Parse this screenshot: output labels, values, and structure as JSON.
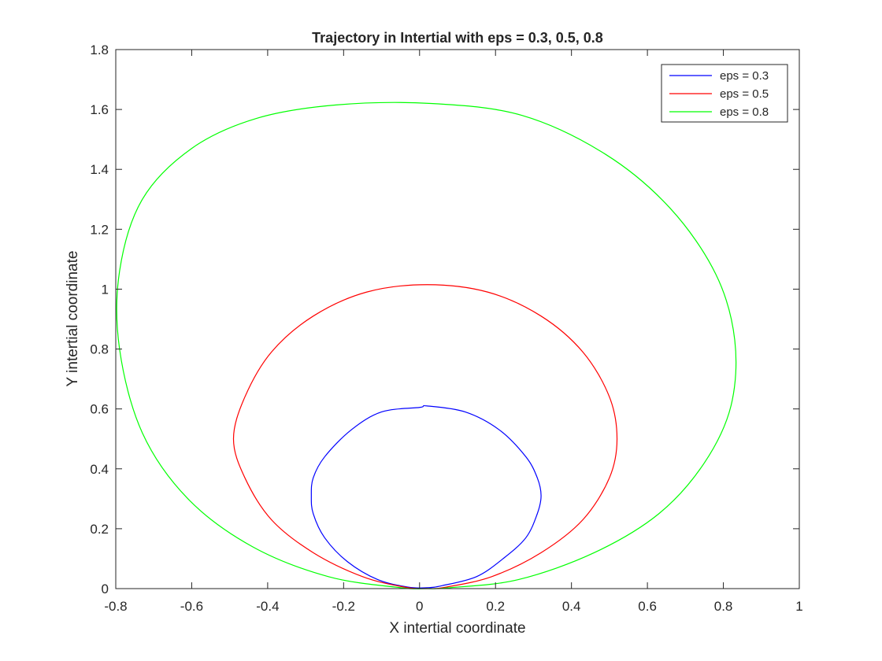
{
  "chart_data": {
    "type": "line",
    "title": "Trajectory in Intertial with eps = 0.3, 0.5, 0.8",
    "xlabel": "X intertial coordinate",
    "ylabel": "Y intertial coordinate",
    "xlim": [
      -0.8,
      1
    ],
    "ylim": [
      0,
      1.8
    ],
    "xticks": [
      -0.8,
      -0.6,
      -0.4,
      -0.2,
      0,
      0.2,
      0.4,
      0.6,
      0.8,
      1
    ],
    "yticks": [
      0,
      0.2,
      0.4,
      0.6,
      0.8,
      1,
      1.2,
      1.4,
      1.6,
      1.8
    ],
    "xtick_labels": [
      "-0.8",
      "-0.6",
      "-0.4",
      "-0.2",
      "0",
      "0.2",
      "0.4",
      "0.6",
      "0.8",
      "1"
    ],
    "ytick_labels": [
      "0",
      "0.2",
      "0.4",
      "0.6",
      "0.8",
      "1",
      "1.2",
      "1.4",
      "1.6",
      "1.8"
    ],
    "grid": false,
    "legend_position": "top-right",
    "series": [
      {
        "name": "eps = 0.3",
        "color": "#0000ff",
        "x": [
          0.02,
          0.12,
          0.21,
          0.28,
          0.31,
          0.32,
          0.31,
          0.28,
          0.22,
          0.15,
          0.06,
          0.02,
          -0.03,
          -0.11,
          -0.19,
          -0.25,
          -0.28,
          -0.285,
          -0.28,
          -0.25,
          -0.18,
          -0.1,
          0.0,
          0.02
        ],
        "y": [
          0.61,
          0.59,
          0.53,
          0.44,
          0.37,
          0.31,
          0.25,
          0.17,
          0.1,
          0.04,
          0.01,
          0.003,
          0.005,
          0.03,
          0.09,
          0.17,
          0.25,
          0.31,
          0.37,
          0.44,
          0.53,
          0.59,
          0.605,
          0.61
        ]
      },
      {
        "name": "eps = 0.5",
        "color": "#ff0000",
        "x": [
          0.02,
          0.18,
          0.32,
          0.43,
          0.5,
          0.52,
          0.5,
          0.43,
          0.32,
          0.19,
          0.07,
          0.02,
          -0.04,
          -0.15,
          -0.28,
          -0.39,
          -0.46,
          -0.49,
          -0.46,
          -0.39,
          -0.28,
          -0.14,
          0.02
        ],
        "y": [
          1.015,
          0.99,
          0.91,
          0.79,
          0.64,
          0.5,
          0.37,
          0.23,
          0.12,
          0.04,
          0.005,
          0.0,
          0.005,
          0.04,
          0.12,
          0.23,
          0.37,
          0.5,
          0.64,
          0.79,
          0.91,
          0.99,
          1.015
        ]
      },
      {
        "name": "eps = 0.8",
        "color": "#00ff00",
        "x": [
          0.03,
          0.27,
          0.49,
          0.66,
          0.78,
          0.83,
          0.82,
          0.75,
          0.63,
          0.46,
          0.26,
          0.08,
          0.02,
          -0.05,
          -0.24,
          -0.44,
          -0.61,
          -0.73,
          -0.79,
          -0.79,
          -0.73,
          -0.6,
          -0.43,
          -0.22,
          0.03
        ],
        "y": [
          1.62,
          1.58,
          1.45,
          1.27,
          1.05,
          0.83,
          0.61,
          0.42,
          0.25,
          0.12,
          0.03,
          0.003,
          0.0,
          0.003,
          0.04,
          0.14,
          0.3,
          0.52,
          0.8,
          1.06,
          1.3,
          1.47,
          1.57,
          1.615,
          1.62
        ]
      }
    ]
  }
}
